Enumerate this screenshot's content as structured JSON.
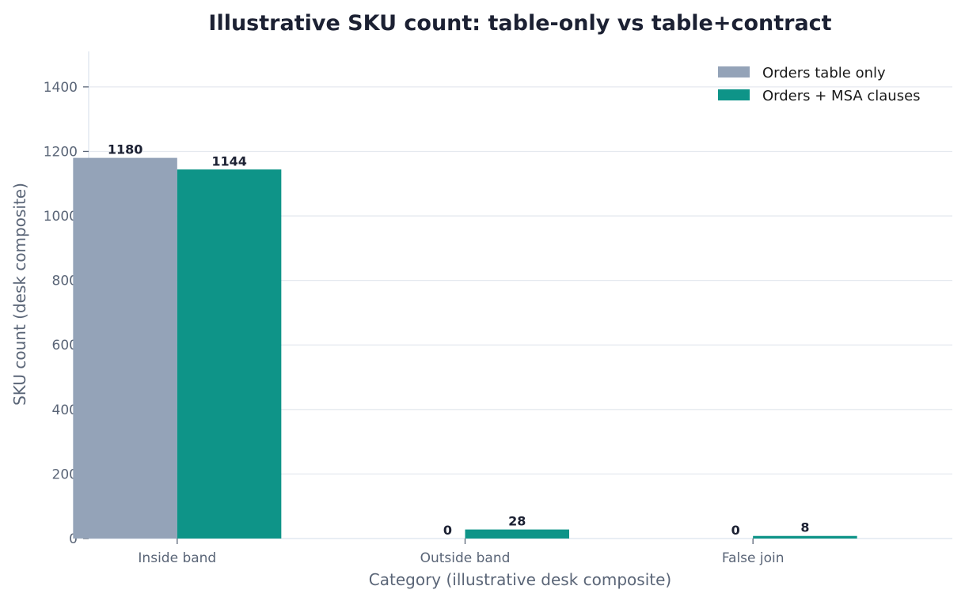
{
  "chart_data": {
    "type": "bar",
    "title": "Illustrative SKU count: table-only vs table+contract",
    "xlabel": "Category (illustrative desk composite)",
    "ylabel": "SKU count (desk composite)",
    "categories": [
      "Inside band",
      "Outside band",
      "False join"
    ],
    "series": [
      {
        "name": "Orders table only",
        "values": [
          1180,
          0,
          0
        ],
        "color": "#94a3b8"
      },
      {
        "name": "Orders + MSA clauses",
        "values": [
          1144,
          28,
          8
        ],
        "color": "#0e9488"
      }
    ],
    "ylim": [
      0,
      1510
    ],
    "yticks": [
      0,
      200,
      400,
      600,
      800,
      1000,
      1200,
      1400
    ],
    "grid": true,
    "legend": "top-right",
    "axis_color": "#e2e8f0",
    "grid_color": "#e5e9ef"
  }
}
